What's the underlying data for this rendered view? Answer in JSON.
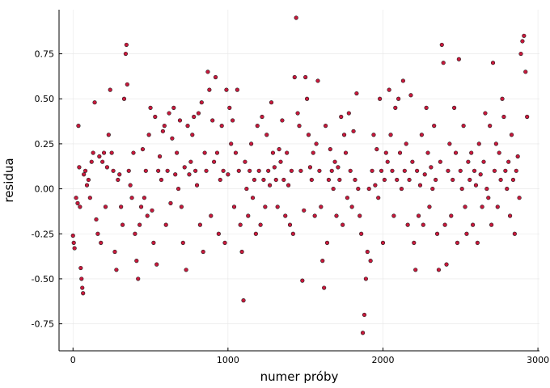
{
  "chart_data": {
    "type": "scatter",
    "title": "",
    "xlabel": "numer próby",
    "ylabel": "residua",
    "xlim": [
      -90,
      3010
    ],
    "ylim": [
      -0.9,
      0.995
    ],
    "x_ticks": [
      0,
      1000,
      2000,
      3000
    ],
    "x_tick_labels": [
      "0",
      "1000",
      "2000",
      "3000"
    ],
    "y_ticks": [
      -0.75,
      -0.5,
      -0.25,
      0.0,
      0.25,
      0.5,
      0.75
    ],
    "y_tick_labels": [
      "-0.75",
      "-0.50",
      "-0.25",
      "0.00",
      "0.25",
      "0.50",
      "0.75"
    ],
    "grid": true,
    "legend": "none",
    "marker_color": "#c8193c",
    "marker_edge_color": "#1a1a1a",
    "series": [
      {
        "points": [
          [
            0,
            -0.26
          ],
          [
            5,
            -0.3
          ],
          [
            10,
            -0.33
          ],
          [
            20,
            -0.05
          ],
          [
            30,
            -0.08
          ],
          [
            35,
            0.35
          ],
          [
            40,
            0.12
          ],
          [
            45,
            -0.1
          ],
          [
            50,
            -0.44
          ],
          [
            55,
            -0.5
          ],
          [
            60,
            -0.55
          ],
          [
            65,
            -0.58
          ],
          [
            70,
            0.08
          ],
          [
            80,
            0.1
          ],
          [
            90,
            0.02
          ],
          [
            100,
            0.05
          ],
          [
            110,
            -0.05
          ],
          [
            120,
            0.15
          ],
          [
            130,
            0.2
          ],
          [
            140,
            0.48
          ],
          [
            150,
            -0.17
          ],
          [
            160,
            -0.25
          ],
          [
            170,
            0.18
          ],
          [
            180,
            -0.3
          ],
          [
            190,
            0.15
          ],
          [
            200,
            0.2
          ],
          [
            210,
            -0.1
          ],
          [
            220,
            0.12
          ],
          [
            230,
            0.3
          ],
          [
            240,
            0.55
          ],
          [
            250,
            0.2
          ],
          [
            260,
            0.1
          ],
          [
            270,
            -0.35
          ],
          [
            280,
            -0.45
          ],
          [
            290,
            0.05
          ],
          [
            300,
            0.08
          ],
          [
            310,
            -0.1
          ],
          [
            320,
            -0.2
          ],
          [
            330,
            0.5
          ],
          [
            340,
            0.75
          ],
          [
            345,
            0.8
          ],
          [
            350,
            0.58
          ],
          [
            360,
            0.1
          ],
          [
            370,
            0.02
          ],
          [
            380,
            -0.05
          ],
          [
            390,
            0.2
          ],
          [
            400,
            -0.25
          ],
          [
            410,
            -0.4
          ],
          [
            420,
            -0.5
          ],
          [
            430,
            -0.2
          ],
          [
            440,
            -0.1
          ],
          [
            450,
            0.22
          ],
          [
            460,
            -0.05
          ],
          [
            470,
            0.1
          ],
          [
            480,
            -0.15
          ],
          [
            490,
            0.3
          ],
          [
            500,
            0.45
          ],
          [
            510,
            -0.12
          ],
          [
            520,
            -0.3
          ],
          [
            530,
            0.4
          ],
          [
            540,
            -0.42
          ],
          [
            550,
            0.1
          ],
          [
            560,
            0.18
          ],
          [
            570,
            0.05
          ],
          [
            580,
            0.32
          ],
          [
            590,
            0.35
          ],
          [
            600,
            -0.2
          ],
          [
            610,
            0.1
          ],
          [
            620,
            0.42
          ],
          [
            630,
            -0.08
          ],
          [
            640,
            0.28
          ],
          [
            650,
            0.45
          ],
          [
            660,
            0.08
          ],
          [
            670,
            0.2
          ],
          [
            680,
            0.0
          ],
          [
            690,
            0.38
          ],
          [
            700,
            -0.1
          ],
          [
            710,
            -0.3
          ],
          [
            720,
            0.12
          ],
          [
            730,
            -0.45
          ],
          [
            740,
            0.35
          ],
          [
            750,
            0.08
          ],
          [
            760,
            0.15
          ],
          [
            770,
            0.3
          ],
          [
            780,
            0.4
          ],
          [
            790,
            0.1
          ],
          [
            800,
            0.02
          ],
          [
            810,
            0.42
          ],
          [
            820,
            -0.2
          ],
          [
            830,
            0.48
          ],
          [
            840,
            -0.35
          ],
          [
            850,
            0.2
          ],
          [
            860,
            0.1
          ],
          [
            870,
            0.65
          ],
          [
            880,
            0.55
          ],
          [
            890,
            -0.15
          ],
          [
            900,
            0.38
          ],
          [
            910,
            0.15
          ],
          [
            920,
            0.62
          ],
          [
            930,
            0.2
          ],
          [
            940,
            -0.25
          ],
          [
            950,
            0.05
          ],
          [
            960,
            0.35
          ],
          [
            970,
            0.1
          ],
          [
            980,
            -0.3
          ],
          [
            990,
            0.55
          ],
          [
            1000,
            0.08
          ],
          [
            1010,
            0.45
          ],
          [
            1020,
            0.25
          ],
          [
            1030,
            0.38
          ],
          [
            1040,
            -0.1
          ],
          [
            1050,
            0.2
          ],
          [
            1060,
            0.55
          ],
          [
            1070,
            0.1
          ],
          [
            1080,
            -0.2
          ],
          [
            1090,
            -0.35
          ],
          [
            1100,
            -0.62
          ],
          [
            1110,
            0.15
          ],
          [
            1120,
            0.0
          ],
          [
            1130,
            -0.15
          ],
          [
            1140,
            0.1
          ],
          [
            1150,
            0.25
          ],
          [
            1160,
            -0.05
          ],
          [
            1170,
            0.05
          ],
          [
            1180,
            -0.25
          ],
          [
            1190,
            0.35
          ],
          [
            1200,
            0.1
          ],
          [
            1210,
            -0.2
          ],
          [
            1220,
            0.4
          ],
          [
            1230,
            0.05
          ],
          [
            1240,
            -0.1
          ],
          [
            1250,
            0.3
          ],
          [
            1260,
            0.1
          ],
          [
            1270,
            0.02
          ],
          [
            1280,
            0.48
          ],
          [
            1290,
            0.2
          ],
          [
            1300,
            0.12
          ],
          [
            1310,
            0.05
          ],
          [
            1320,
            -0.1
          ],
          [
            1330,
            0.22
          ],
          [
            1340,
            0.15
          ],
          [
            1350,
            0.38
          ],
          [
            1360,
            0.05
          ],
          [
            1370,
            -0.15
          ],
          [
            1380,
            0.2
          ],
          [
            1390,
            0.02
          ],
          [
            1400,
            -0.2
          ],
          [
            1410,
            0.1
          ],
          [
            1420,
            -0.25
          ],
          [
            1430,
            0.62
          ],
          [
            1440,
            0.95
          ],
          [
            1450,
            0.42
          ],
          [
            1460,
            0.35
          ],
          [
            1470,
            0.1
          ],
          [
            1480,
            -0.51
          ],
          [
            1490,
            -0.12
          ],
          [
            1500,
            0.62
          ],
          [
            1510,
            0.5
          ],
          [
            1520,
            0.3
          ],
          [
            1530,
            0.12
          ],
          [
            1540,
            0.05
          ],
          [
            1550,
            0.2
          ],
          [
            1560,
            -0.15
          ],
          [
            1570,
            0.25
          ],
          [
            1580,
            0.6
          ],
          [
            1590,
            0.1
          ],
          [
            1600,
            -0.1
          ],
          [
            1610,
            -0.4
          ],
          [
            1620,
            -0.55
          ],
          [
            1630,
            0.35
          ],
          [
            1640,
            -0.3
          ],
          [
            1650,
            0.05
          ],
          [
            1660,
            0.22
          ],
          [
            1670,
            0.1
          ],
          [
            1680,
            0.0
          ],
          [
            1690,
            0.15
          ],
          [
            1700,
            -0.15
          ],
          [
            1710,
            0.12
          ],
          [
            1720,
            0.05
          ],
          [
            1730,
            0.4
          ],
          [
            1740,
            -0.2
          ],
          [
            1750,
            0.3
          ],
          [
            1760,
            0.2
          ],
          [
            1770,
            -0.05
          ],
          [
            1780,
            0.42
          ],
          [
            1790,
            0.1
          ],
          [
            1800,
            -0.1
          ],
          [
            1810,
            0.32
          ],
          [
            1820,
            0.05
          ],
          [
            1830,
            0.53
          ],
          [
            1840,
            0.0
          ],
          [
            1850,
            -0.15
          ],
          [
            1860,
            -0.25
          ],
          [
            1870,
            -0.8
          ],
          [
            1880,
            -0.7
          ],
          [
            1890,
            -0.5
          ],
          [
            1900,
            -0.35
          ],
          [
            1910,
            0.0
          ],
          [
            1920,
            -0.4
          ],
          [
            1930,
            0.1
          ],
          [
            1940,
            0.3
          ],
          [
            1950,
            0.02
          ],
          [
            1960,
            0.22
          ],
          [
            1970,
            -0.05
          ],
          [
            1980,
            0.5
          ],
          [
            1990,
            0.1
          ],
          [
            2000,
            -0.3
          ],
          [
            2010,
            0.05
          ],
          [
            2020,
            0.2
          ],
          [
            2030,
            0.15
          ],
          [
            2040,
            0.55
          ],
          [
            2050,
            0.3
          ],
          [
            2060,
            0.1
          ],
          [
            2070,
            -0.15
          ],
          [
            2080,
            0.45
          ],
          [
            2090,
            0.05
          ],
          [
            2100,
            0.5
          ],
          [
            2110,
            0.2
          ],
          [
            2120,
            0.0
          ],
          [
            2130,
            0.6
          ],
          [
            2140,
            0.1
          ],
          [
            2150,
            0.25
          ],
          [
            2160,
            -0.2
          ],
          [
            2170,
            0.05
          ],
          [
            2180,
            0.52
          ],
          [
            2190,
            0.15
          ],
          [
            2200,
            -0.3
          ],
          [
            2210,
            -0.45
          ],
          [
            2220,
            0.1
          ],
          [
            2230,
            -0.15
          ],
          [
            2240,
            0.02
          ],
          [
            2250,
            0.3
          ],
          [
            2260,
            -0.2
          ],
          [
            2270,
            0.08
          ],
          [
            2280,
            0.45
          ],
          [
            2290,
            0.2
          ],
          [
            2300,
            -0.1
          ],
          [
            2310,
            0.12
          ],
          [
            2320,
            0.0
          ],
          [
            2330,
            0.35
          ],
          [
            2340,
            0.05
          ],
          [
            2350,
            -0.25
          ],
          [
            2360,
            -0.45
          ],
          [
            2370,
            0.15
          ],
          [
            2380,
            0.8
          ],
          [
            2390,
            0.7
          ],
          [
            2400,
            -0.2
          ],
          [
            2410,
            -0.42
          ],
          [
            2420,
            0.1
          ],
          [
            2430,
            0.25
          ],
          [
            2440,
            -0.15
          ],
          [
            2450,
            0.05
          ],
          [
            2460,
            0.45
          ],
          [
            2470,
            0.2
          ],
          [
            2480,
            -0.3
          ],
          [
            2490,
            0.72
          ],
          [
            2500,
            0.1
          ],
          [
            2510,
            0.0
          ],
          [
            2520,
            0.35
          ],
          [
            2530,
            -0.1
          ],
          [
            2540,
            -0.25
          ],
          [
            2550,
            0.15
          ],
          [
            2560,
            0.05
          ],
          [
            2570,
            0.2
          ],
          [
            2580,
            -0.2
          ],
          [
            2590,
            0.1
          ],
          [
            2600,
            0.02
          ],
          [
            2610,
            -0.3
          ],
          [
            2620,
            0.25
          ],
          [
            2630,
            0.08
          ],
          [
            2640,
            -0.1
          ],
          [
            2650,
            0.15
          ],
          [
            2660,
            0.42
          ],
          [
            2670,
            0.0
          ],
          [
            2680,
            -0.05
          ],
          [
            2690,
            0.35
          ],
          [
            2700,
            -0.2
          ],
          [
            2710,
            0.7
          ],
          [
            2720,
            0.1
          ],
          [
            2730,
            0.25
          ],
          [
            2740,
            -0.1
          ],
          [
            2750,
            0.2
          ],
          [
            2760,
            0.05
          ],
          [
            2770,
            0.5
          ],
          [
            2780,
            0.4
          ],
          [
            2790,
            0.1
          ],
          [
            2800,
            0.0
          ],
          [
            2810,
            0.15
          ],
          [
            2820,
            -0.15
          ],
          [
            2830,
            0.3
          ],
          [
            2840,
            0.05
          ],
          [
            2850,
            -0.25
          ],
          [
            2860,
            0.1
          ],
          [
            2870,
            0.18
          ],
          [
            2880,
            -0.05
          ],
          [
            2890,
            0.75
          ],
          [
            2900,
            0.82
          ],
          [
            2910,
            0.85
          ],
          [
            2920,
            0.65
          ],
          [
            2930,
            0.4
          ]
        ]
      }
    ]
  }
}
